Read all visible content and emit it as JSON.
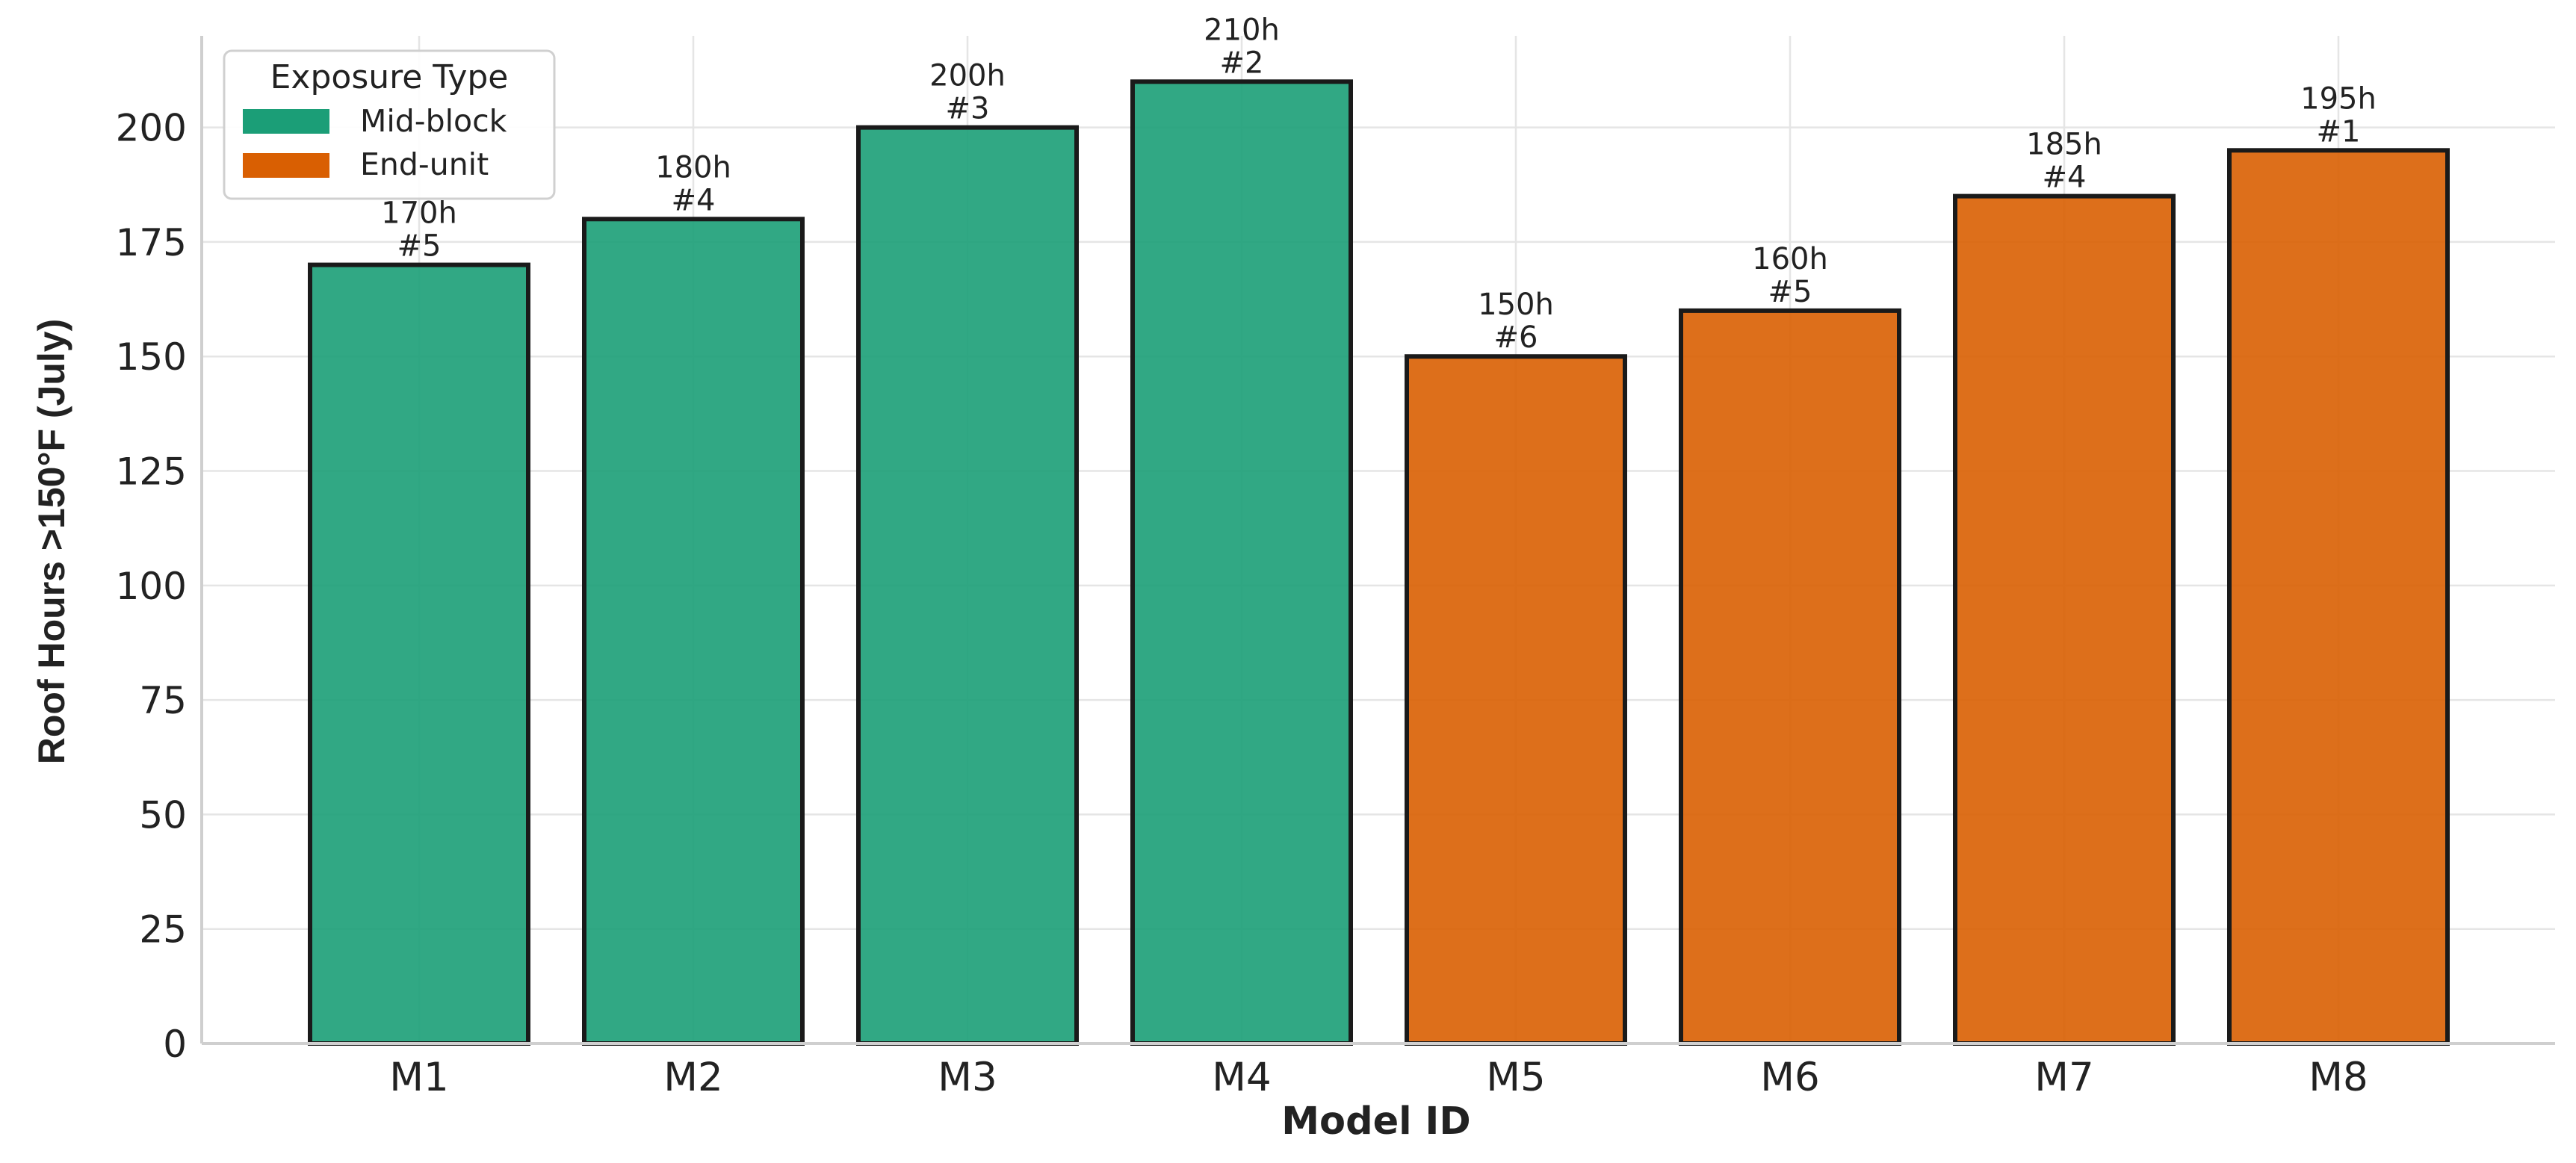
{
  "chart_data": {
    "type": "bar",
    "title": "",
    "xlabel": "Model ID",
    "ylabel": "Roof Hours >150°F (July)",
    "ylim": [
      0,
      220
    ],
    "yticks": [
      0,
      25,
      50,
      75,
      100,
      125,
      150,
      175,
      200
    ],
    "grid": true,
    "categories": [
      "M1",
      "M2",
      "M3",
      "M4",
      "M5",
      "M6",
      "M7",
      "M8"
    ],
    "values": [
      170,
      180,
      200,
      210,
      150,
      160,
      185,
      195
    ],
    "exposure": [
      "Mid-block",
      "Mid-block",
      "Mid-block",
      "Mid-block",
      "End-unit",
      "End-unit",
      "End-unit",
      "End-unit"
    ],
    "value_labels": [
      "170h",
      "180h",
      "200h",
      "210h",
      "150h",
      "160h",
      "185h",
      "195h"
    ],
    "rank_labels": [
      "#5",
      "#4",
      "#3",
      "#2",
      "#6",
      "#5",
      "#4",
      "#1"
    ],
    "legend": {
      "title": "Exposure Type",
      "placement": "top-left",
      "entries": [
        {
          "label": "Mid-block",
          "color": "#1b9e77"
        },
        {
          "label": "End-unit",
          "color": "#d95f02"
        }
      ]
    },
    "colors": {
      "Mid-block": "#1b9e77",
      "End-unit": "#d95f02",
      "bar_edge": "#1a1a1a"
    }
  }
}
